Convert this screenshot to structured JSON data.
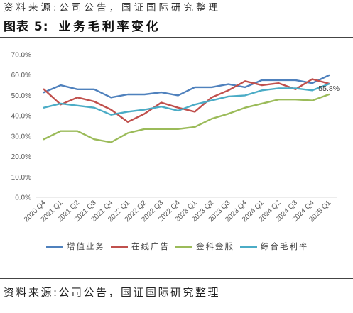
{
  "header": {
    "source_note": "资料来源:公司公告，国证国际研究整理",
    "figure_label": "图表 5:"
  },
  "chart_data": {
    "type": "line",
    "title": "业务毛利率变化",
    "categories": [
      "2020 Q4",
      "2021 Q1",
      "2021 Q2",
      "2021 Q3",
      "2021 Q4",
      "2022 Q1",
      "2022 Q2",
      "2022 Q3",
      "2022 Q4",
      "2023 Q1",
      "2023 Q2",
      "2023 Q3",
      "2023 Q4",
      "2024 Q1",
      "2024 Q2",
      "2024 Q3",
      "2024 Q4",
      "2025 Q1"
    ],
    "series": [
      {
        "name": "增值业务",
        "color": "#4F81BD",
        "values": [
          51.5,
          55.0,
          53.0,
          53.0,
          49.0,
          50.5,
          50.5,
          51.5,
          50.0,
          54.0,
          54.0,
          55.5,
          54.0,
          57.5,
          57.5,
          57.5,
          56.0,
          59.9
        ]
      },
      {
        "name": "在线广告",
        "color": "#C0504D",
        "values": [
          53.0,
          45.5,
          49.0,
          47.0,
          43.0,
          37.0,
          41.0,
          46.5,
          44.0,
          42.0,
          49.0,
          52.5,
          57.0,
          55.0,
          56.0,
          53.0,
          58.0,
          55.8
        ]
      },
      {
        "name": "金科金服",
        "color": "#9BBB59",
        "values": [
          28.5,
          32.5,
          32.5,
          28.5,
          27.0,
          31.5,
          33.5,
          33.5,
          33.5,
          34.5,
          38.5,
          41.0,
          44.0,
          46.0,
          48.0,
          48.0,
          47.5,
          50.5
        ]
      },
      {
        "name": "综合毛利率",
        "color": "#4BACC6",
        "values": [
          44.0,
          46.0,
          45.0,
          44.0,
          40.5,
          42.0,
          43.0,
          44.5,
          42.5,
          45.5,
          47.5,
          49.5,
          50.0,
          52.5,
          53.5,
          53.5,
          52.5,
          55.6
        ]
      }
    ],
    "ylim": [
      0,
      70
    ],
    "y_ticks": [
      70,
      60,
      50,
      40,
      30,
      20,
      10,
      0
    ],
    "y_tick_labels": [
      "70.0%",
      "60.0%",
      "50.0%",
      "40.0%",
      "30.0%",
      "20.0%",
      "10.0%",
      "0.0%"
    ],
    "data_labels": [
      {
        "series": "在线广告",
        "category": "2025 Q1",
        "text": "55.8%"
      }
    ],
    "grid": false,
    "legend_position": "bottom"
  },
  "footer": {
    "source_note": "资料来源:公司公告，国证国际研究整理"
  }
}
